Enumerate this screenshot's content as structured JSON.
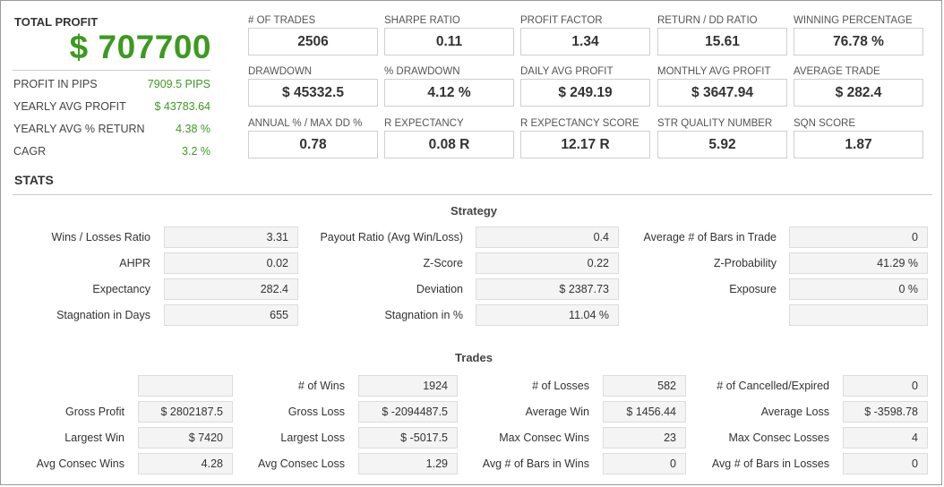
{
  "summary": {
    "total_profit_label": "TOTAL PROFIT",
    "total_profit_value": "$ 707700",
    "rows": [
      {
        "label": "PROFIT IN PIPS",
        "value": "7909.5 PIPS"
      },
      {
        "label": "YEARLY AVG PROFIT",
        "value": "$ 43783.64"
      },
      {
        "label": "YEARLY AVG % RETURN",
        "value": "4.38 %"
      },
      {
        "label": "CAGR",
        "value": "3.2 %"
      }
    ]
  },
  "metrics": [
    {
      "label": "# OF TRADES",
      "value": "2506"
    },
    {
      "label": "SHARPE RATIO",
      "value": "0.11"
    },
    {
      "label": "PROFIT FACTOR",
      "value": "1.34"
    },
    {
      "label": "RETURN / DD RATIO",
      "value": "15.61"
    },
    {
      "label": "WINNING PERCENTAGE",
      "value": "76.78 %"
    },
    {
      "label": "DRAWDOWN",
      "value": "$ 45332.5"
    },
    {
      "label": "% DRAWDOWN",
      "value": "4.12 %"
    },
    {
      "label": "DAILY AVG PROFIT",
      "value": "$ 249.19"
    },
    {
      "label": "MONTHLY AVG PROFIT",
      "value": "$ 3647.94"
    },
    {
      "label": "AVERAGE TRADE",
      "value": "$ 282.4"
    },
    {
      "label": "ANNUAL % / MAX DD %",
      "value": "0.78"
    },
    {
      "label": "R EXPECTANCY",
      "value": "0.08 R"
    },
    {
      "label": "R EXPECTANCY SCORE",
      "value": "12.17 R"
    },
    {
      "label": "STR QUALITY NUMBER",
      "value": "5.92"
    },
    {
      "label": "SQN SCORE",
      "value": "1.87"
    }
  ],
  "stats_title": "STATS",
  "strategy": {
    "title": "Strategy",
    "col1": [
      {
        "label": "Wins / Losses Ratio",
        "value": "3.31"
      },
      {
        "label": "AHPR",
        "value": "0.02"
      },
      {
        "label": "Expectancy",
        "value": "282.4"
      },
      {
        "label": "Stagnation in Days",
        "value": "655"
      }
    ],
    "col2": [
      {
        "label": "Payout Ratio (Avg Win/Loss)",
        "value": "0.4"
      },
      {
        "label": "Z-Score",
        "value": "0.22"
      },
      {
        "label": "Deviation",
        "value": "$ 2387.73"
      },
      {
        "label": "Stagnation in %",
        "value": "11.04 %"
      }
    ],
    "col3": [
      {
        "label": "Average # of Bars in Trade",
        "value": "0"
      },
      {
        "label": "Z-Probability",
        "value": "41.29 %"
      },
      {
        "label": "Exposure",
        "value": "0 %"
      },
      {
        "label": "",
        "value": ""
      }
    ]
  },
  "trades": {
    "title": "Trades",
    "col1": [
      {
        "label": "",
        "value": ""
      },
      {
        "label": "Gross Profit",
        "value": "$ 2802187.5"
      },
      {
        "label": "Largest Win",
        "value": "$ 7420"
      },
      {
        "label": "Avg Consec Wins",
        "value": "4.28"
      }
    ],
    "col2": [
      {
        "label": "# of Wins",
        "value": "1924"
      },
      {
        "label": "Gross Loss",
        "value": "$ -2094487.5"
      },
      {
        "label": "Largest Loss",
        "value": "$ -5017.5"
      },
      {
        "label": "Avg Consec Loss",
        "value": "1.29"
      }
    ],
    "col3": [
      {
        "label": "# of Losses",
        "value": "582"
      },
      {
        "label": "Average Win",
        "value": "$ 1456.44"
      },
      {
        "label": "Max Consec Wins",
        "value": "23"
      },
      {
        "label": "Avg # of Bars in Wins",
        "value": "0"
      }
    ],
    "col4": [
      {
        "label": "# of Cancelled/Expired",
        "value": "0"
      },
      {
        "label": "Average Loss",
        "value": "$ -3598.78"
      },
      {
        "label": "Max Consec Losses",
        "value": "4"
      },
      {
        "label": "Avg # of Bars in Losses",
        "value": "0"
      }
    ]
  }
}
